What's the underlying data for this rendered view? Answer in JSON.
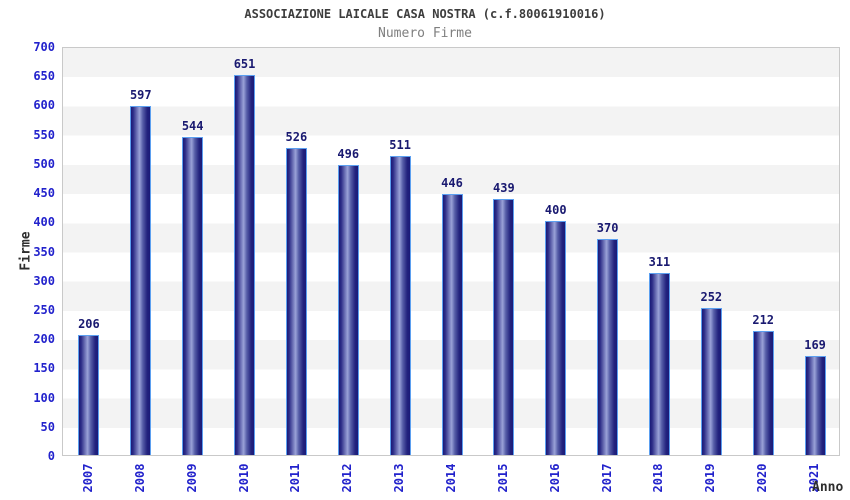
{
  "header": {
    "title": "ASSOCIAZIONE LAICALE CASA NOSTRA (c.f.80061910016)",
    "subtitle": "Numero Firme"
  },
  "chart_data": {
    "type": "bar",
    "title": "ASSOCIAZIONE LAICALE CASA NOSTRA (c.f.80061910016)",
    "subtitle": "Numero Firme",
    "categories": [
      "2007",
      "2008",
      "2009",
      "2010",
      "2011",
      "2012",
      "2013",
      "2014",
      "2015",
      "2016",
      "2017",
      "2018",
      "2019",
      "2020",
      "2021"
    ],
    "values": [
      206,
      597,
      544,
      651,
      526,
      496,
      511,
      446,
      439,
      400,
      370,
      311,
      252,
      212,
      169
    ],
    "xlabel": "Anno",
    "ylabel": "Firme",
    "ylim": [
      0,
      700
    ],
    "ytick_step": 50,
    "grid": "alternating-horizontal-bands",
    "legend": "none",
    "bar_value_labels_shown": true,
    "colors": {
      "bar_dark": "#1a1a78",
      "bar_mid_highlight": "#9aa2d8",
      "bar_outline": "#5b9ff0",
      "tick_labels": "#2222cc",
      "value_labels": "#191970",
      "band_gray": "#f3f3f3",
      "plot_border": "#c9c9c9",
      "title": "#3d3d3d",
      "subtitle": "#7f7f7f",
      "axis_labels": "#2e2e2e",
      "background": "#ffffff"
    }
  }
}
